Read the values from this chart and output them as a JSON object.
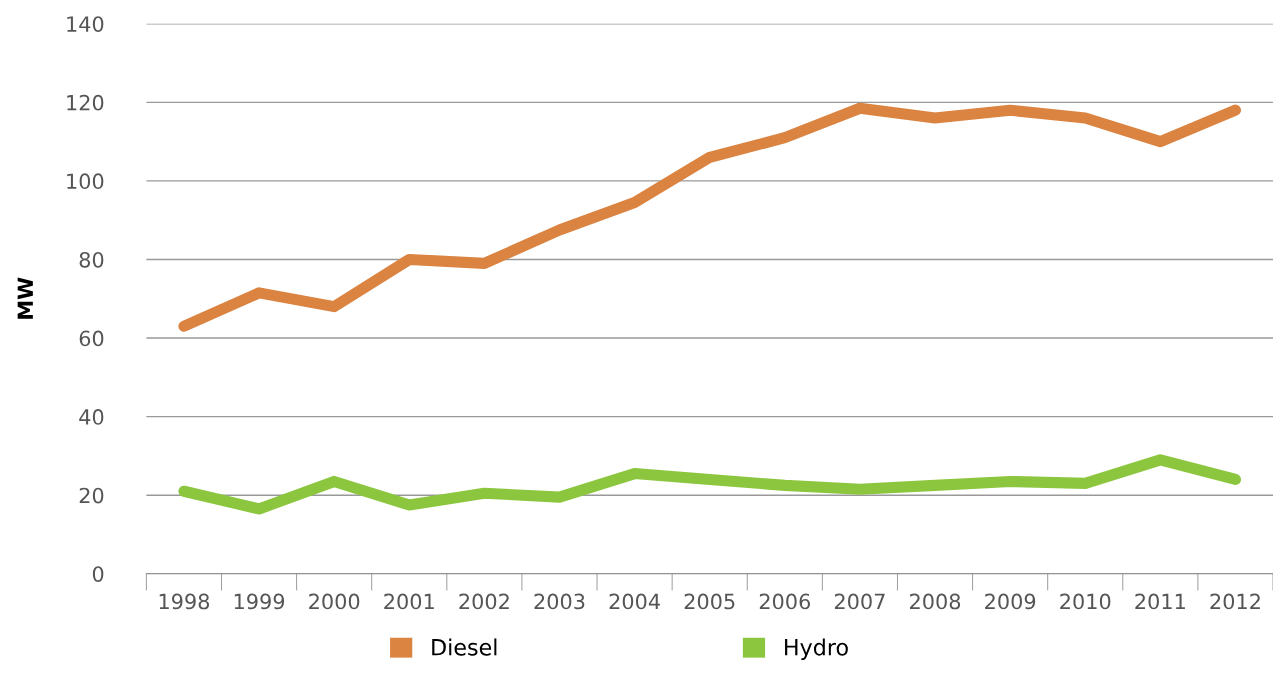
{
  "chart_data": {
    "type": "line",
    "ylabel": "MW",
    "categories": [
      "1998",
      "1999",
      "2000",
      "2001",
      "2002",
      "2003",
      "2004",
      "2005",
      "2006",
      "2007",
      "2008",
      "2009",
      "2010",
      "2011",
      "2012"
    ],
    "series": [
      {
        "name": "Diesel",
        "color": "#db8442",
        "values": [
          63,
          71.5,
          68,
          80,
          79,
          87.5,
          94.5,
          106,
          111,
          118.5,
          116,
          118,
          116,
          110,
          118
        ]
      },
      {
        "name": "Hydro",
        "color": "#8cc63f",
        "values": [
          21,
          16.5,
          23.5,
          17.5,
          20.5,
          19.5,
          25.5,
          24,
          22.5,
          21.5,
          22.5,
          23.5,
          23,
          29,
          24
        ]
      }
    ],
    "ylim": [
      0,
      140
    ],
    "yticks": [
      0,
      20,
      40,
      60,
      80,
      100,
      120,
      140
    ],
    "grid": "y",
    "legend": "bottom",
    "marker": "none",
    "line_style": "solid"
  }
}
